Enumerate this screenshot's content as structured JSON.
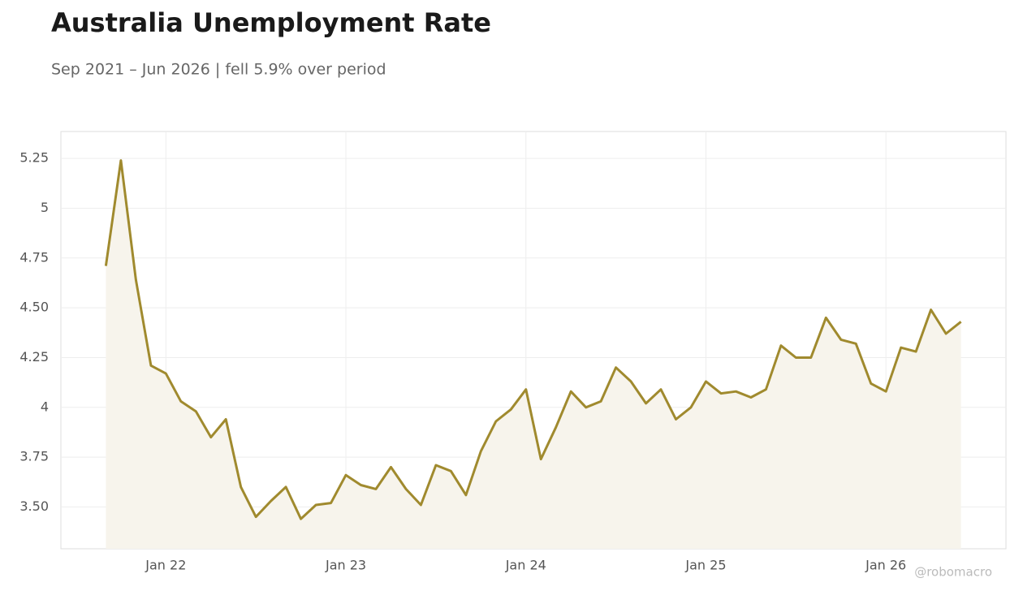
{
  "chart_data": {
    "type": "line",
    "title": "Australia Unemployment Rate",
    "subtitle": "Sep 2021 – Jun 2026 | fell 5.9% over period",
    "watermark": "@robomacro",
    "x": [
      "2021-09",
      "2021-10",
      "2021-11",
      "2021-12",
      "2022-01",
      "2022-02",
      "2022-03",
      "2022-04",
      "2022-05",
      "2022-06",
      "2022-07",
      "2022-08",
      "2022-09",
      "2022-10",
      "2022-11",
      "2022-12",
      "2023-01",
      "2023-02",
      "2023-03",
      "2023-04",
      "2023-05",
      "2023-06",
      "2023-07",
      "2023-08",
      "2023-09",
      "2023-10",
      "2023-11",
      "2023-12",
      "2024-01",
      "2024-02",
      "2024-03",
      "2024-04",
      "2024-05",
      "2024-06",
      "2024-07",
      "2024-08",
      "2024-09",
      "2024-10",
      "2024-11",
      "2024-12",
      "2025-01",
      "2025-02",
      "2025-03",
      "2025-04",
      "2025-05",
      "2025-06",
      "2025-07",
      "2025-08",
      "2025-09",
      "2025-10",
      "2025-11",
      "2025-12",
      "2026-01",
      "2026-02",
      "2026-03",
      "2026-04",
      "2026-05",
      "2026-06"
    ],
    "values": [
      4.71,
      5.24,
      4.64,
      4.21,
      4.17,
      4.03,
      3.98,
      3.85,
      3.94,
      3.6,
      3.45,
      3.53,
      3.6,
      3.44,
      3.51,
      3.52,
      3.66,
      3.61,
      3.59,
      3.7,
      3.59,
      3.51,
      3.71,
      3.68,
      3.56,
      3.78,
      3.93,
      3.99,
      4.09,
      3.74,
      3.9,
      4.08,
      4.0,
      4.03,
      4.2,
      4.13,
      4.02,
      4.09,
      3.94,
      4.0,
      4.13,
      4.07,
      4.08,
      4.05,
      4.09,
      4.31,
      4.25,
      4.25,
      4.45,
      4.34,
      4.32,
      4.12,
      4.08,
      4.3,
      4.28,
      4.49,
      4.37,
      4.43
    ],
    "color": "#a08a2e",
    "fill": "#f7f4ec",
    "xlim": [
      "2021-06",
      "2026-09"
    ],
    "xticks": [
      {
        "value": "2022-01",
        "label": "Jan 22"
      },
      {
        "value": "2023-01",
        "label": "Jan 23"
      },
      {
        "value": "2024-01",
        "label": "Jan 24"
      },
      {
        "value": "2025-01",
        "label": "Jan 25"
      },
      {
        "value": "2026-01",
        "label": "Jan 26"
      }
    ],
    "ylim": [
      3.29,
      5.385
    ],
    "yticks": [
      {
        "value": 3.5,
        "label": "3.50"
      },
      3.75,
      4,
      4.25,
      {
        "value": 4.5,
        "label": "4.50"
      },
      4.75,
      5,
      5.25
    ],
    "grid": true
  }
}
